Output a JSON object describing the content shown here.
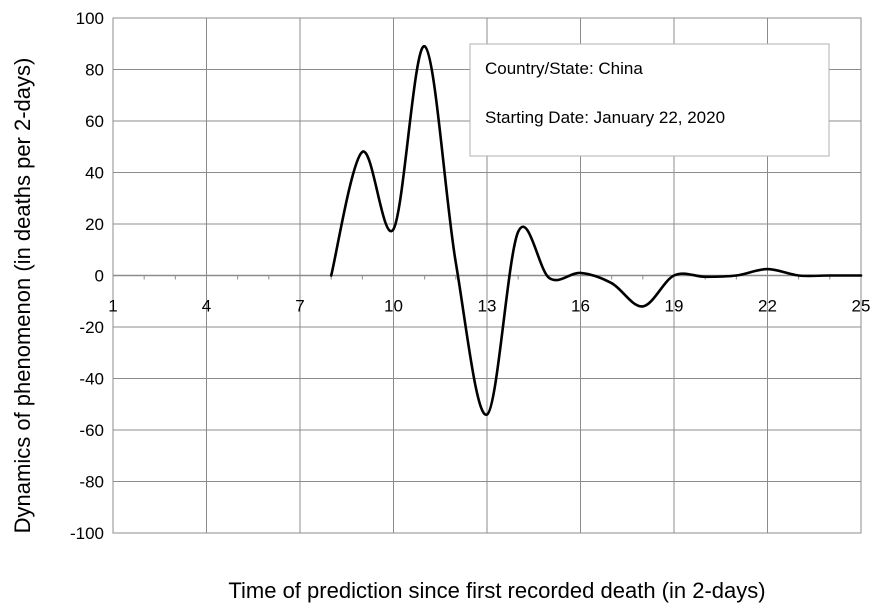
{
  "chart_data": {
    "type": "line",
    "xlabel": "Time of prediction since first recorded death (in 2-days)",
    "ylabel": "Dynamics of phenomenon (in deaths per 2-days)",
    "xlim": [
      1,
      25
    ],
    "ylim": [
      -100,
      100
    ],
    "x_ticks": [
      "1",
      "4",
      "7",
      "10",
      "13",
      "16",
      "19",
      "22",
      "25"
    ],
    "y_ticks": [
      "100",
      "80",
      "60",
      "40",
      "20",
      "0",
      "-20",
      "-40",
      "-60",
      "-80",
      "-100"
    ],
    "grid": true,
    "annotation": {
      "lines": [
        "Country/State: China",
        "Starting Date: January 22, 2020"
      ],
      "placement": "top-right"
    },
    "series": [
      {
        "color": "#000000",
        "x": [
          8,
          9,
          10,
          11,
          12,
          13,
          14,
          15,
          16,
          17,
          18,
          19,
          20,
          21,
          22,
          23,
          24,
          25
        ],
        "y": [
          0,
          48,
          18,
          89,
          5,
          -54,
          17,
          -1,
          1,
          -3,
          -12,
          0,
          -0.5,
          0,
          2.5,
          0,
          0,
          0
        ]
      }
    ]
  }
}
